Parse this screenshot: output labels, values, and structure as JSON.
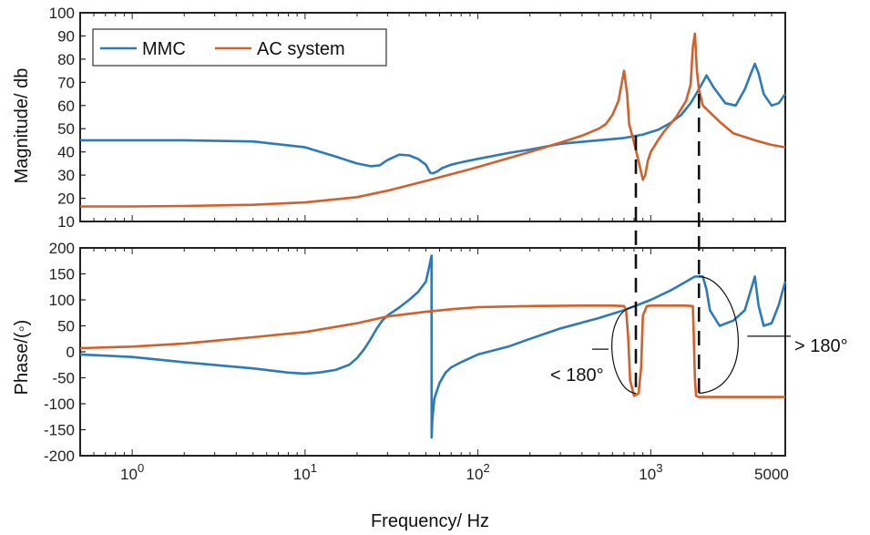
{
  "chart_data": [
    {
      "type": "line",
      "panel": "magnitude",
      "xscale": "log",
      "xlim": [
        0.5,
        6000
      ],
      "ylim": [
        10,
        100
      ],
      "yticks": [
        10,
        20,
        30,
        40,
        50,
        60,
        70,
        80,
        90,
        100
      ],
      "ylabel": "Magnitude/  db",
      "legend": {
        "placement": "top-left",
        "entries": [
          "MMC",
          "AC system"
        ]
      },
      "series": [
        {
          "name": "MMC",
          "color": "#2e7ab8",
          "x": [
            0.5,
            1,
            2,
            5,
            10,
            15,
            20,
            24,
            27,
            30,
            35,
            40,
            45,
            50,
            53,
            55,
            58,
            62,
            70,
            80,
            100,
            150,
            200,
            300,
            500,
            700,
            900,
            1100,
            1300,
            1500,
            1700,
            1900,
            2000,
            2100,
            2300,
            2700,
            3100,
            3500,
            3800,
            4000,
            4200,
            4500,
            5000,
            5500,
            6000
          ],
          "y": [
            45,
            45,
            45,
            44.5,
            42,
            38,
            35,
            33.8,
            34.2,
            36.5,
            38.8,
            38.5,
            37,
            34.5,
            31,
            30.8,
            31.5,
            33,
            34.5,
            35.5,
            37,
            39.5,
            41,
            43.5,
            45,
            46,
            47.5,
            49.5,
            52.5,
            56,
            61,
            67,
            70,
            73,
            68,
            61,
            60,
            67,
            74,
            78,
            74,
            65,
            60,
            61,
            65
          ]
        },
        {
          "name": "AC system",
          "color": "#d3602a",
          "x": [
            0.5,
            1,
            2,
            5,
            10,
            20,
            30,
            50,
            80,
            100,
            200,
            300,
            400,
            500,
            550,
            600,
            650,
            700,
            730,
            750,
            800,
            850,
            900,
            930,
            960,
            1000,
            1100,
            1200,
            1400,
            1600,
            1700,
            1750,
            1800,
            1850,
            1900,
            2000,
            2500,
            3000,
            4000,
            5000,
            6000
          ],
          "y": [
            16.5,
            16.5,
            16.7,
            17.2,
            18.2,
            20.5,
            23.3,
            27.5,
            31.5,
            33.5,
            40,
            44,
            47,
            50,
            52,
            56,
            62,
            75,
            65,
            52,
            44,
            36,
            28,
            30,
            36,
            40,
            45,
            49,
            55,
            62,
            69,
            85,
            91,
            75,
            67,
            60,
            53,
            48,
            45,
            43,
            42
          ]
        }
      ]
    },
    {
      "type": "line",
      "panel": "phase",
      "xscale": "log",
      "xlim": [
        0.5,
        6000
      ],
      "ylim": [
        -200,
        200
      ],
      "yticks": [
        -200,
        -150,
        -100,
        -50,
        0,
        50,
        100,
        150,
        200
      ],
      "ylabel": "Phase/(◦)",
      "xlabel": "Frequency/ Hz",
      "xticks": [
        {
          "value": 1,
          "base": "10",
          "exp": "0"
        },
        {
          "value": 10,
          "base": "10",
          "exp": "1"
        },
        {
          "value": 100,
          "base": "10",
          "exp": "2"
        },
        {
          "value": 1000,
          "base": "10",
          "exp": "3"
        },
        {
          "value": 5000,
          "label": "5000"
        }
      ],
      "series": [
        {
          "name": "MMC",
          "color": "#2e7ab8",
          "x": [
            0.5,
            1,
            2,
            5,
            8,
            10,
            12,
            15,
            18,
            20,
            22,
            24,
            26,
            28,
            30,
            35,
            40,
            45,
            50,
            52,
            53.9,
            54,
            54.5,
            56,
            60,
            65,
            70,
            80,
            100,
            150,
            200,
            300,
            500,
            700,
            1000,
            1300,
            1600,
            1800,
            2000,
            2100,
            2200,
            2500,
            3000,
            3500,
            3800,
            4000,
            4200,
            4500,
            5000,
            5500,
            6000
          ],
          "y": [
            -5,
            -10,
            -20,
            -32,
            -40,
            -42,
            -40,
            -35,
            -25,
            -12,
            5,
            25,
            45,
            60,
            70,
            85,
            100,
            115,
            135,
            160,
            185,
            -165,
            -130,
            -90,
            -60,
            -40,
            -30,
            -20,
            -5,
            10,
            25,
            45,
            65,
            80,
            100,
            118,
            135,
            145,
            145,
            120,
            80,
            50,
            60,
            80,
            120,
            145,
            90,
            50,
            55,
            90,
            135
          ]
        },
        {
          "name": "AC system",
          "color": "#d3602a",
          "x": [
            0.5,
            1,
            2,
            5,
            10,
            20,
            30,
            50,
            70,
            100,
            200,
            400,
            600,
            700,
            720,
            740,
            760,
            800,
            850,
            880,
            900,
            950,
            1000,
            1200,
            1400,
            1600,
            1750,
            1770,
            1800,
            1830,
            1900,
            2000,
            3000,
            6000
          ],
          "y": [
            7,
            10,
            16,
            28,
            38,
            55,
            68,
            77,
            82,
            86,
            88,
            89,
            89,
            88,
            80,
            30,
            -55,
            -85,
            -80,
            -30,
            70,
            88,
            89,
            89,
            89,
            89,
            88,
            40,
            -50,
            -85,
            -87,
            -87,
            -87,
            -87
          ]
        }
      ],
      "annotations": [
        {
          "text": "< 180°",
          "target": "AC system phase drop near 700–900 Hz"
        },
        {
          "text": "> 180°",
          "target": "phase difference near 1.8 kHz"
        }
      ]
    }
  ]
}
